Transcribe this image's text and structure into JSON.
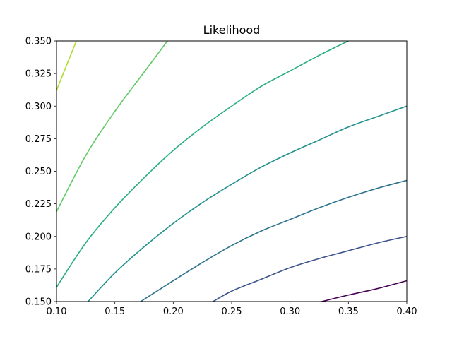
{
  "chart_data": {
    "type": "contour",
    "title": "Likelihood",
    "xlabel": "",
    "ylabel": "",
    "xlim": [
      0.1,
      0.4
    ],
    "ylim": [
      0.15,
      0.35
    ],
    "x_ticks": [
      "0.10",
      "0.15",
      "0.20",
      "0.25",
      "0.30",
      "0.35",
      "0.40"
    ],
    "y_ticks": [
      "0.150",
      "0.175",
      "0.200",
      "0.225",
      "0.250",
      "0.275",
      "0.300",
      "0.325",
      "0.350"
    ],
    "grid": false,
    "contours": [
      {
        "color": "#440154",
        "points": [
          [
            0.327,
            0.15
          ],
          [
            0.35,
            0.155
          ],
          [
            0.375,
            0.16
          ],
          [
            0.4,
            0.166
          ]
        ]
      },
      {
        "color": "#3b528b",
        "points": [
          [
            0.234,
            0.15
          ],
          [
            0.25,
            0.158
          ],
          [
            0.275,
            0.167
          ],
          [
            0.3,
            0.176
          ],
          [
            0.325,
            0.183
          ],
          [
            0.35,
            0.189
          ],
          [
            0.375,
            0.195
          ],
          [
            0.4,
            0.2
          ]
        ]
      },
      {
        "color": "#2c728e",
        "points": [
          [
            0.172,
            0.15
          ],
          [
            0.2,
            0.166
          ],
          [
            0.225,
            0.18
          ],
          [
            0.25,
            0.193
          ],
          [
            0.275,
            0.204
          ],
          [
            0.3,
            0.213
          ],
          [
            0.325,
            0.222
          ],
          [
            0.35,
            0.23
          ],
          [
            0.375,
            0.237
          ],
          [
            0.4,
            0.243
          ]
        ]
      },
      {
        "color": "#21918c",
        "points": [
          [
            0.127,
            0.15
          ],
          [
            0.15,
            0.172
          ],
          [
            0.175,
            0.192
          ],
          [
            0.2,
            0.21
          ],
          [
            0.225,
            0.226
          ],
          [
            0.25,
            0.24
          ],
          [
            0.275,
            0.253
          ],
          [
            0.3,
            0.264
          ],
          [
            0.325,
            0.274
          ],
          [
            0.35,
            0.284
          ],
          [
            0.375,
            0.292
          ],
          [
            0.4,
            0.3
          ]
        ]
      },
      {
        "color": "#28ae80",
        "points": [
          [
            0.1,
            0.161
          ],
          [
            0.125,
            0.195
          ],
          [
            0.15,
            0.222
          ],
          [
            0.175,
            0.245
          ],
          [
            0.2,
            0.266
          ],
          [
            0.225,
            0.284
          ],
          [
            0.25,
            0.3
          ],
          [
            0.275,
            0.315
          ],
          [
            0.3,
            0.327
          ],
          [
            0.325,
            0.339
          ],
          [
            0.35,
            0.35
          ]
        ]
      },
      {
        "color": "#5ec962",
        "points": [
          [
            0.1,
            0.219
          ],
          [
            0.125,
            0.262
          ],
          [
            0.15,
            0.296
          ],
          [
            0.175,
            0.326
          ],
          [
            0.195,
            0.35
          ]
        ]
      },
      {
        "color": "#addc30",
        "points": [
          [
            0.1,
            0.312
          ],
          [
            0.108,
            0.33
          ],
          [
            0.117,
            0.35
          ]
        ]
      }
    ]
  }
}
